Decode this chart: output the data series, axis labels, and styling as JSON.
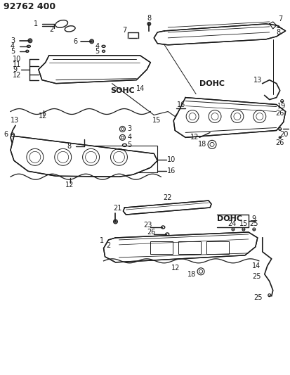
{
  "title": "92762 400",
  "bg_color": "#ffffff",
  "line_color": "#1a1a1a",
  "text_color": "#1a1a1a",
  "figsize": [
    4.13,
    5.33
  ],
  "dpi": 100,
  "labels": {
    "sohc": "SOHC",
    "dohc1": "DOHC",
    "dohc2": "DOHC"
  }
}
